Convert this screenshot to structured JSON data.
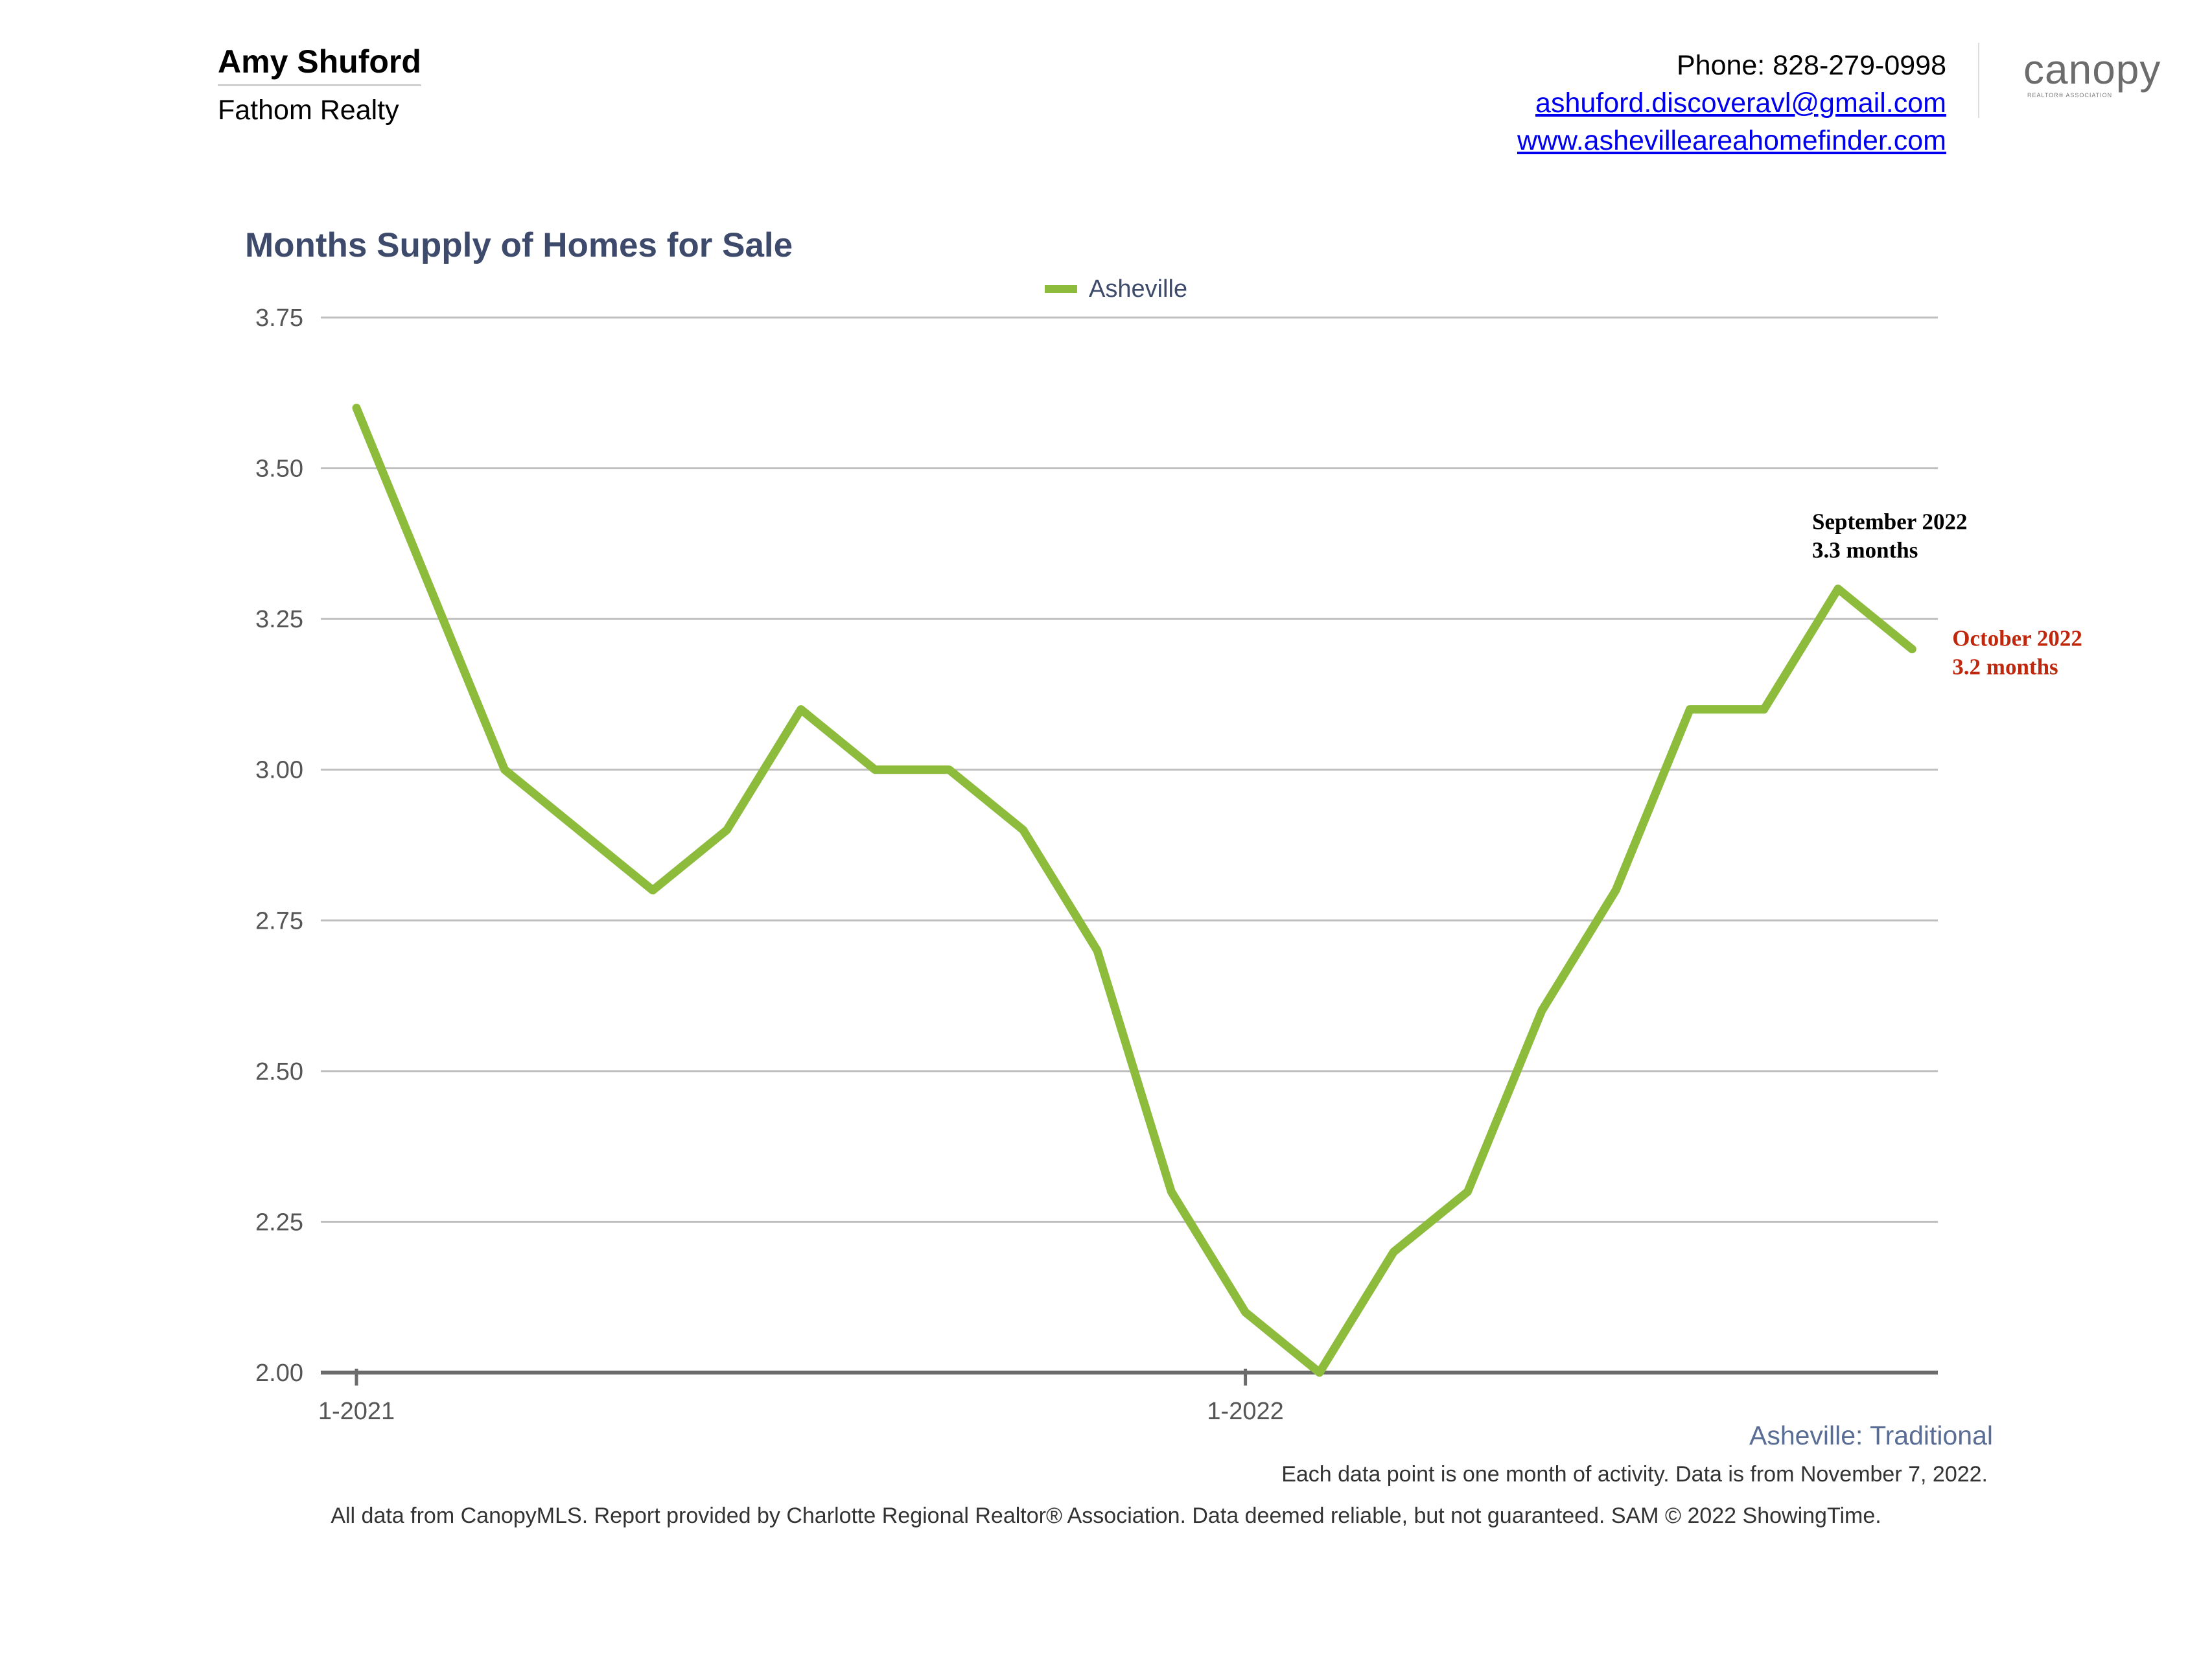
{
  "header": {
    "agent_name": "Amy Shuford",
    "agent_company": "Fathom Realty",
    "phone": "Phone: 828-279-0998",
    "email": "ashuford.discoveravl@gmail.com",
    "website": "www.ashevilleareahomefinder.com",
    "logo_text": "canopy",
    "logo_subtext": "REALTOR® ASSOCIATION"
  },
  "colors": {
    "series": "#8dbb3c",
    "title": "#3d4a6b",
    "annotation_current": "#c0280e"
  },
  "chart_data": {
    "type": "line",
    "title": "Months Supply of Homes for Sale",
    "xlabel": "",
    "ylabel": "",
    "x_tick_labels": [
      "1-2021",
      "1-2022"
    ],
    "x": [
      "2021-01",
      "2021-02",
      "2021-03",
      "2021-04",
      "2021-05",
      "2021-06",
      "2021-07",
      "2021-08",
      "2021-09",
      "2021-10",
      "2021-11",
      "2021-12",
      "2022-01",
      "2022-02",
      "2022-03",
      "2022-04",
      "2022-05",
      "2022-06",
      "2022-07",
      "2022-08",
      "2022-09",
      "2022-10"
    ],
    "series": [
      {
        "name": "Asheville",
        "values": [
          3.6,
          3.3,
          3.0,
          2.9,
          2.8,
          2.9,
          3.1,
          3.0,
          3.0,
          2.9,
          2.7,
          2.3,
          2.1,
          2.0,
          2.2,
          2.3,
          2.6,
          2.8,
          3.1,
          3.1,
          3.3,
          3.2
        ]
      }
    ],
    "ylim": [
      2.0,
      3.75
    ],
    "y_ticks": [
      "2.00",
      "2.25",
      "2.50",
      "2.75",
      "3.00",
      "3.25",
      "3.50",
      "3.75"
    ],
    "grid": true,
    "legend_position": "top-center",
    "annotations": [
      {
        "line1": "September 2022",
        "line2": "3.3 months",
        "x": "2022-09",
        "style": "prior"
      },
      {
        "line1": "October 2022",
        "line2": "3.2 months",
        "x": "2022-10",
        "style": "current"
      }
    ]
  },
  "footer": {
    "region": "Asheville: Traditional",
    "note": "Each data point is one month of activity. Data is from November 7, 2022.",
    "disclaimer": "All data from CanopyMLS. Report provided by Charlotte Regional Realtor® Association. Data deemed reliable, but not guaranteed. SAM © 2022 ShowingTime."
  }
}
